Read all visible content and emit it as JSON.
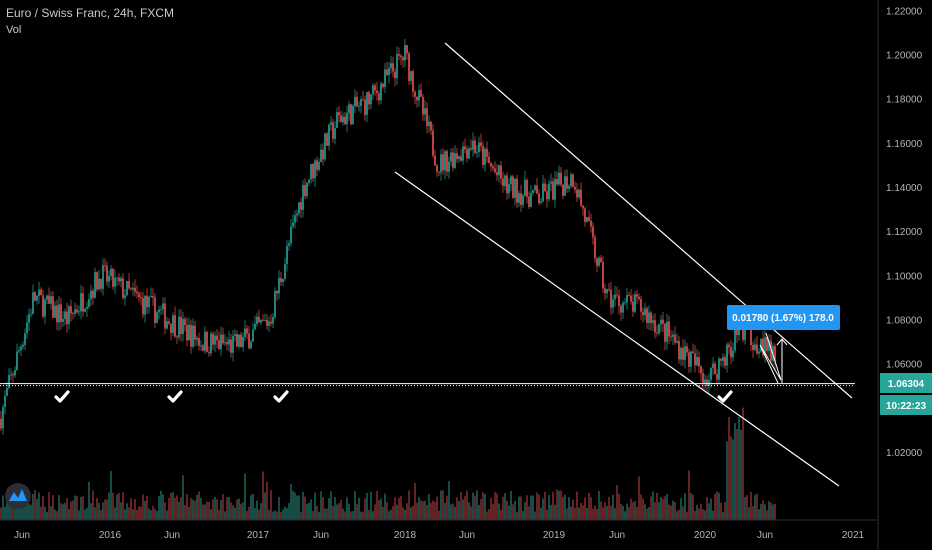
{
  "header": {
    "title": "Euro / Swiss Franc, 24h, FXCM",
    "volume_label": "Vol"
  },
  "chart_data": {
    "type": "line",
    "x": [
      "2015-06",
      "2015-09",
      "2015-12",
      "2016-03",
      "2016-06",
      "2016-09",
      "2016-12",
      "2017-03",
      "2017-06",
      "2017-09",
      "2017-12",
      "2018-03",
      "2018-04",
      "2018-06",
      "2018-09",
      "2018-12",
      "2019-03",
      "2019-06",
      "2019-09",
      "2019-12",
      "2020-02",
      "2020-04",
      "2020-06",
      "2020-07"
    ],
    "series": [
      {
        "values": [
          1.035,
          1.09,
          1.08,
          1.1,
          1.09,
          1.08,
          1.07,
          1.068,
          1.08,
          1.14,
          1.17,
          1.18,
          1.2,
          1.15,
          1.16,
          1.14,
          1.135,
          1.145,
          1.09,
          1.085,
          1.07,
          1.053,
          1.076,
          1.063
        ]
      }
    ],
    "x_tick_labels": [
      "Jun",
      "2016",
      "Jun",
      "2017",
      "Jun",
      "2018",
      "Jun",
      "2019",
      "Jun",
      "2020",
      "Jun",
      "2021"
    ],
    "y_tick_labels": [
      "1.22000",
      "1.20000",
      "1.18000",
      "1.16000",
      "1.14000",
      "1.12000",
      "1.10000",
      "1.08000",
      "1.06000",
      "1.04000",
      "1.02000"
    ],
    "ylim": [
      1.005,
      1.222
    ],
    "support_level": 1.06304,
    "grid": false,
    "annotations": {
      "price_badge": "1.06304",
      "time_badge": "10:22:23",
      "measure_label": "0.01780 (1.67%) 178.0"
    },
    "colors": {
      "up": "#26a69a",
      "down": "#ef5350",
      "badge": "#26a69a",
      "measure": "#2196f3",
      "lines": "#ffffff"
    }
  }
}
